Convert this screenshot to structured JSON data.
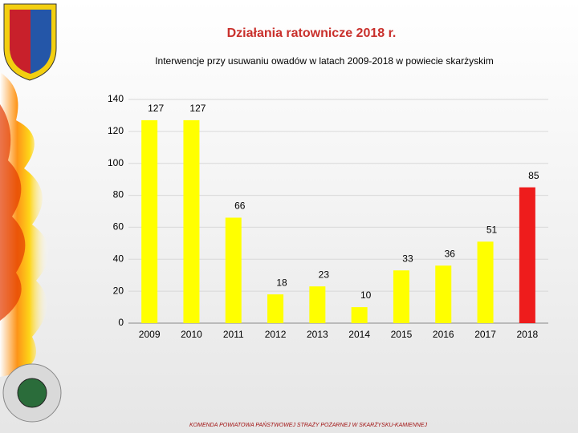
{
  "slide_title": "Działania ratownicze 2018 r.",
  "footer": "KOMENDA POWIATOWA PAŃSTWOWEJ STRAŻY POŻARNEJ W SKARŻYSKU-KAMIENNEJ",
  "chart_data": {
    "type": "bar",
    "title": "Interwencje przy usuwaniu owadów w latach 2009-2018 w  powiecie skarżyskim",
    "categories": [
      "2009",
      "2010",
      "2011",
      "2012",
      "2013",
      "2014",
      "2015",
      "2016",
      "2017",
      "2018"
    ],
    "values": [
      127,
      127,
      66,
      18,
      23,
      10,
      33,
      36,
      51,
      85
    ],
    "colors": [
      "#ffff00",
      "#ffff00",
      "#ffff00",
      "#ffff00",
      "#ffff00",
      "#ffff00",
      "#ffff00",
      "#ffff00",
      "#ffff00",
      "#ee1c1c"
    ],
    "ylim": [
      0,
      140
    ],
    "yticks": [
      0,
      20,
      40,
      60,
      80,
      100,
      120,
      140
    ],
    "grid": true
  }
}
